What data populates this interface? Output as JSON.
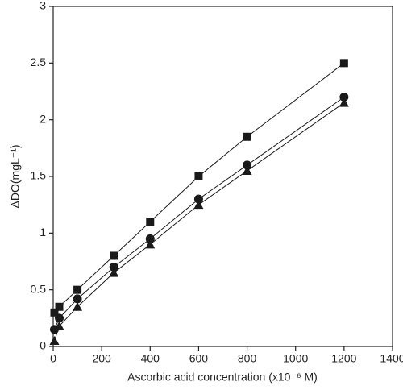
{
  "chart_data": {
    "type": "line",
    "x_label": "Ascorbic acid concentration (x10⁻⁶ M)",
    "y_label": "ΔDO(mgL⁻¹)",
    "x": [
      5,
      25,
      100,
      250,
      400,
      600,
      800,
      1200
    ],
    "series": [
      {
        "marker": "square",
        "color": "#1a1a1a",
        "values": [
          0.3,
          0.35,
          0.5,
          0.8,
          1.1,
          1.5,
          1.85,
          2.5
        ]
      },
      {
        "marker": "circle",
        "color": "#1a1a1a",
        "values": [
          0.15,
          0.25,
          0.42,
          0.7,
          0.95,
          1.3,
          1.6,
          2.2
        ]
      },
      {
        "marker": "triangle",
        "color": "#1a1a1a",
        "values": [
          0.05,
          0.18,
          0.35,
          0.65,
          0.9,
          1.25,
          1.55,
          2.15
        ]
      }
    ],
    "xlim": [
      0,
      1400
    ],
    "xticks": [
      0,
      200,
      400,
      600,
      800,
      1000,
      1200,
      1400
    ],
    "ylim": [
      0,
      3
    ],
    "yticks": [
      0,
      0.5,
      1,
      1.5,
      2,
      2.5,
      3
    ]
  }
}
